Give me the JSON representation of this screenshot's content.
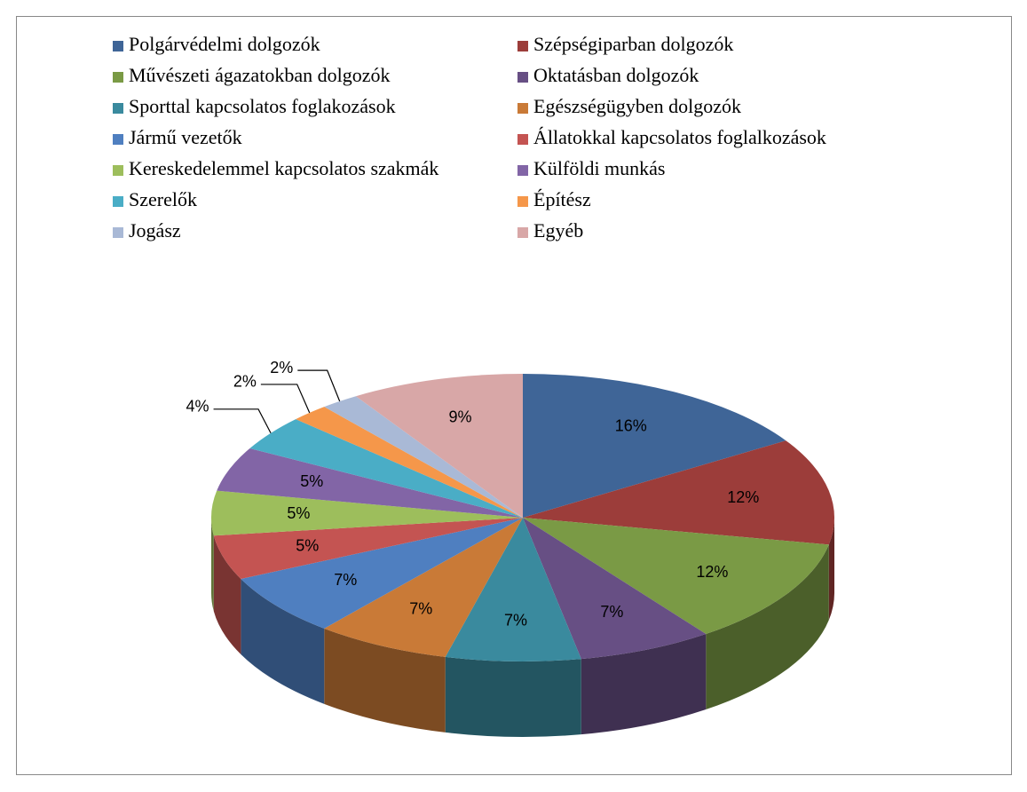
{
  "chart_data": {
    "type": "pie",
    "categories": [
      "Polgárvédelmi dolgozók",
      "Szépségiparban dolgozók",
      "Művészeti ágazatokban dolgozók",
      "Oktatásban dolgozók",
      "Sporttal kapcsolatos foglakozások",
      "Egészségügyben dolgozók",
      "Jármű vezetők",
      "Állatokkal kapcsolatos foglalkozások",
      "Kereskedelemmel kapcsolatos szakmák",
      "Külföldi munkás",
      "Szerelők",
      "Építész",
      "Jogász",
      "Egyéb"
    ],
    "values": [
      16,
      12,
      12,
      7,
      7,
      7,
      7,
      5,
      5,
      5,
      4,
      2,
      2,
      9
    ],
    "value_labels": [
      "16%",
      "12%",
      "12%",
      "7%",
      "7%",
      "7%",
      "7%",
      "5%",
      "5%",
      "5%",
      "4%",
      "2%",
      "2%",
      "9%"
    ],
    "colors": [
      "#3F6597",
      "#9C3D3A",
      "#7A9A45",
      "#674F84",
      "#3A8A9E",
      "#C97A37",
      "#4F7FC0",
      "#C45452",
      "#9DBE5C",
      "#8265A6",
      "#4AADC6",
      "#F5974A",
      "#A9B9D6",
      "#D8A7A7"
    ],
    "legend": "top"
  }
}
